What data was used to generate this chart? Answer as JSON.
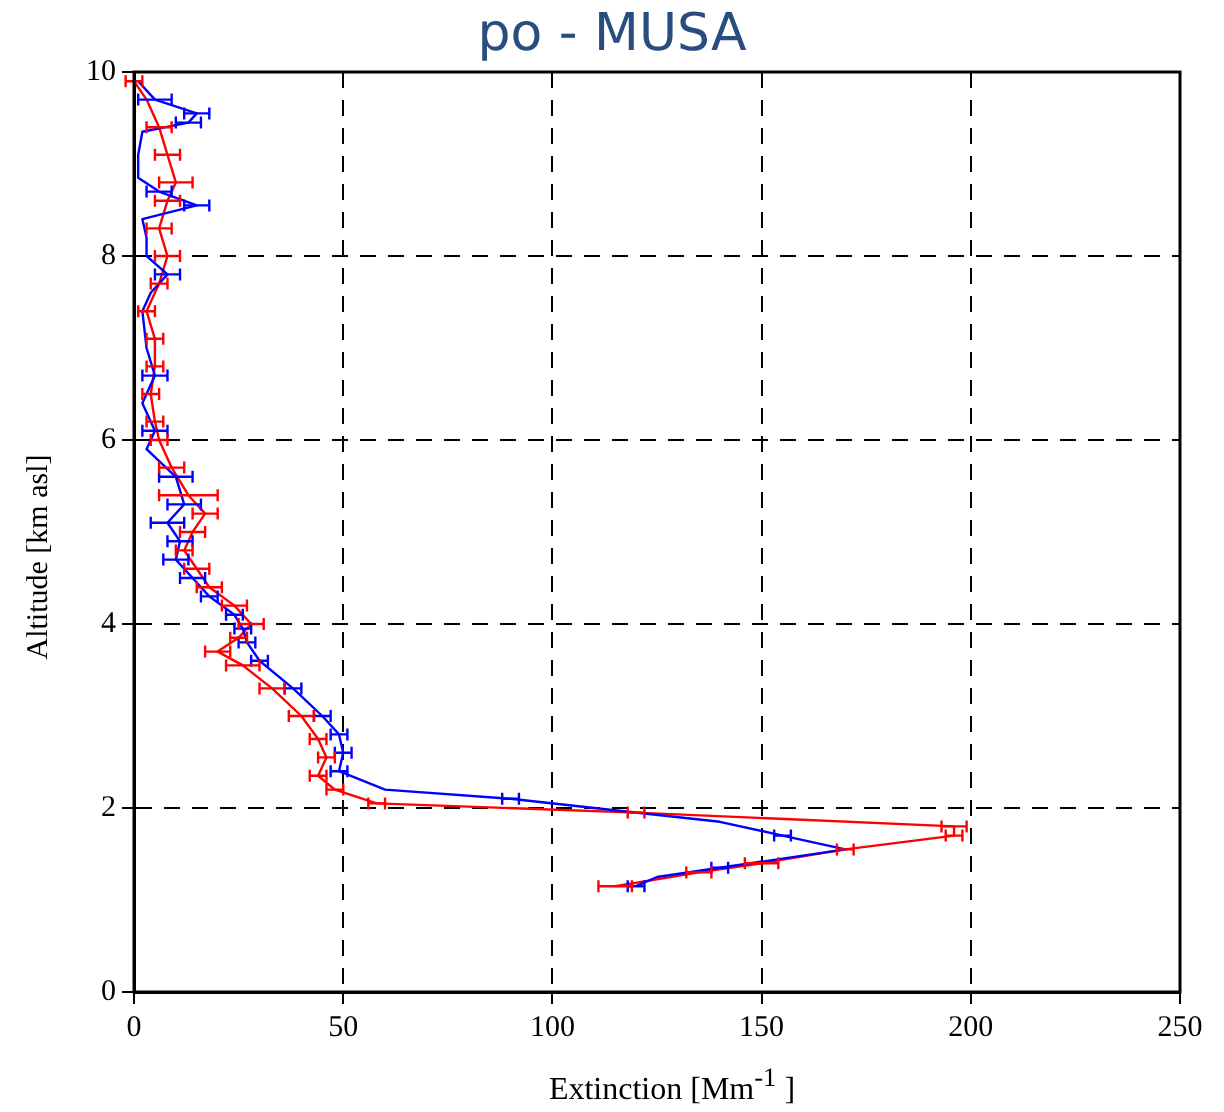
{
  "chart_data": {
    "type": "line",
    "title": "po - MUSA",
    "xlabel": "Extinction [Mm$^{-1}$ ]",
    "ylabel": "Altitude [km asl]",
    "xlim": [
      0,
      250
    ],
    "xticks": [
      0,
      50,
      100,
      150,
      200,
      250
    ],
    "ylim": [
      0,
      10
    ],
    "yticks": [
      0,
      2,
      4,
      6,
      8,
      10
    ],
    "grid": true,
    "legend": false,
    "marker": "none",
    "line_style": "solid",
    "series": [
      {
        "color": "#0000ff",
        "x": [
          1,
          5,
          15,
          13,
          2,
          1,
          1,
          6,
          15,
          2,
          3,
          3,
          8,
          4,
          2,
          3,
          5,
          2,
          5,
          3,
          10,
          12,
          8,
          11,
          10,
          14,
          18,
          24,
          26,
          27,
          30,
          38,
          45,
          49,
          50,
          49,
          60,
          90,
          110,
          140,
          155,
          170,
          155,
          140,
          125,
          120
        ],
        "values": [
          9.9,
          9.7,
          9.55,
          9.45,
          9.35,
          9.1,
          8.85,
          8.7,
          8.55,
          8.4,
          8.2,
          8.0,
          7.8,
          7.6,
          7.4,
          7.0,
          6.7,
          6.4,
          6.1,
          5.9,
          5.6,
          5.3,
          5.1,
          4.9,
          4.7,
          4.5,
          4.3,
          4.1,
          3.95,
          3.8,
          3.6,
          3.3,
          3.0,
          2.8,
          2.6,
          2.4,
          2.2,
          2.1,
          2.0,
          1.85,
          1.7,
          1.55,
          1.45,
          1.35,
          1.25,
          1.15
        ],
        "xerrors": [
          null,
          4,
          3,
          3,
          null,
          null,
          null,
          3,
          3,
          null,
          null,
          null,
          3,
          null,
          null,
          null,
          3,
          null,
          3,
          null,
          4,
          4,
          4,
          3,
          3,
          3,
          2,
          2,
          2,
          2,
          2,
          2,
          2,
          2,
          2,
          2,
          null,
          2,
          null,
          null,
          2,
          null,
          null,
          2,
          null,
          2
        ]
      },
      {
        "color": "#ff0000",
        "x": [
          0,
          3,
          6,
          8,
          10,
          8,
          6,
          8,
          6,
          3,
          5,
          5,
          4,
          5,
          6,
          9,
          13,
          17,
          14,
          12,
          15,
          18,
          24,
          28,
          25,
          20,
          26,
          33,
          40,
          44,
          46,
          44,
          48,
          58,
          120,
          196,
          196,
          170,
          150,
          135,
          115
        ],
        "values": [
          9.9,
          9.7,
          9.4,
          9.1,
          8.8,
          8.6,
          8.3,
          8.0,
          7.7,
          7.4,
          7.1,
          6.8,
          6.5,
          6.2,
          6.0,
          5.7,
          5.4,
          5.2,
          5.0,
          4.8,
          4.6,
          4.4,
          4.2,
          4.0,
          3.85,
          3.7,
          3.55,
          3.3,
          3.0,
          2.75,
          2.55,
          2.35,
          2.2,
          2.05,
          1.95,
          1.8,
          1.7,
          1.55,
          1.4,
          1.3,
          1.15
        ],
        "xerrors": [
          2,
          null,
          3,
          3,
          4,
          3,
          3,
          3,
          2,
          2,
          2,
          2,
          2,
          2,
          2,
          3,
          7,
          3,
          3,
          2,
          3,
          3,
          3,
          3,
          2,
          3,
          4,
          3,
          3,
          2,
          2,
          2,
          2,
          2,
          2,
          3,
          2,
          2,
          4,
          3,
          4
        ]
      }
    ]
  }
}
